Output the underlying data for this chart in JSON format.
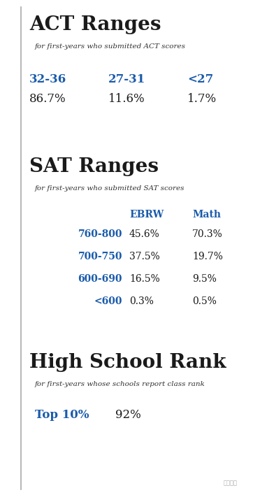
{
  "bg_color": "#ffffff",
  "blue_color": "#1a5bab",
  "black_color": "#1a1a1a",
  "border_color": "#999999",
  "act_title": "ACT Ranges",
  "act_subtitle": "for first-years who submitted ACT scores",
  "act_ranges": [
    "32-36",
    "27-31",
    "<27"
  ],
  "act_values": [
    "86.7%",
    "11.6%",
    "1.7%"
  ],
  "sat_title": "SAT Ranges",
  "sat_subtitle": "for first-years who submitted SAT scores",
  "sat_col1_header": "EBRW",
  "sat_col2_header": "Math",
  "sat_ranges": [
    "760-800",
    "700-750",
    "600-690",
    "<600"
  ],
  "sat_ebrw": [
    "45.6%",
    "37.5%",
    "16.5%",
    "0.3%"
  ],
  "sat_math": [
    "70.3%",
    "19.7%",
    "9.5%",
    "0.5%"
  ],
  "hs_title": "High School Rank",
  "hs_subtitle": "for first-years whose schools report class rank",
  "hs_label": "Top 10%",
  "hs_value": "92%",
  "watermark": "台南星歌"
}
